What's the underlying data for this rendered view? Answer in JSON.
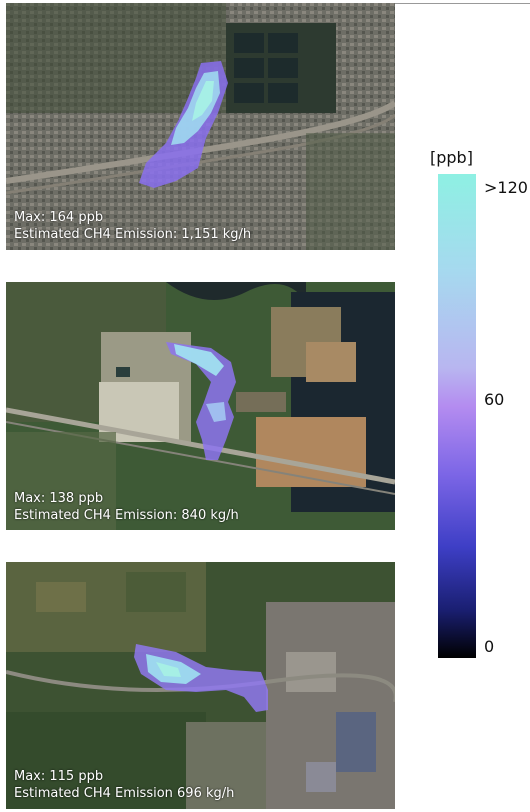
{
  "panels": [
    {
      "max": "Max: 164 ppb",
      "emission": "Estimated CH4 Emission: 1,151 kg/h"
    },
    {
      "max": "Max: 138 ppb",
      "emission": "Estimated CH4 Emission: 840 kg/h"
    },
    {
      "max": "Max: 115 ppb",
      "emission": "Estimated CH4 Emission 696 kg/h"
    }
  ],
  "colorbar": {
    "title": "[ppb]",
    "ticks": [
      ">120",
      "60",
      "0"
    ],
    "colors": [
      "#8ef0e3",
      "#b48cf0",
      "#3e3fc6",
      "#000000"
    ]
  }
}
